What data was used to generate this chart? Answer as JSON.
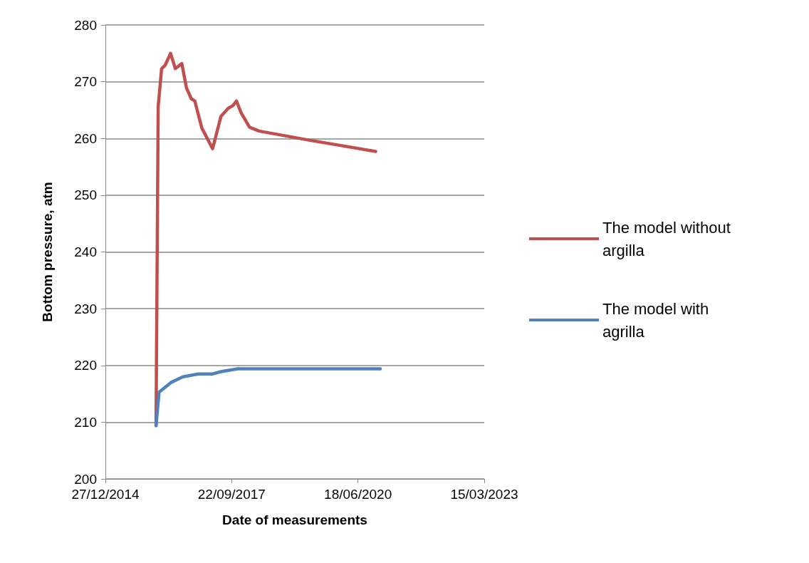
{
  "chart_data": {
    "type": "line",
    "xlabel": "Date of measurements",
    "ylabel": "Bottom pressure, atm",
    "xlim": [
      "2014-12-27",
      "2023-03-15"
    ],
    "xticks": [
      {
        "value": "2014-12-27",
        "label": "27/12/2014"
      },
      {
        "value": "2017-09-22",
        "label": "22/09/2017"
      },
      {
        "value": "2020-06-18",
        "label": "18/06/2020"
      },
      {
        "value": "2023-03-15",
        "label": "15/03/2023"
      }
    ],
    "ylim": [
      200,
      280
    ],
    "yticks": [
      200,
      210,
      220,
      230,
      240,
      250,
      260,
      270,
      280
    ],
    "grid": "y",
    "legend": "right",
    "marker": "none",
    "line_style": "solid",
    "series": [
      {
        "name": "The model without argilla",
        "color": "#c0504d",
        "x": [
          "2016-02-01",
          "2016-02-18",
          "2016-03-16",
          "2016-04-13",
          "2016-05-26",
          "2016-07-03",
          "2016-08-23",
          "2016-09-29",
          "2016-11-06",
          "2016-12-04",
          "2017-01-29",
          "2017-04-24",
          "2017-06-29",
          "2017-08-25",
          "2017-10-02",
          "2017-10-30",
          "2017-12-06",
          "2018-02-10",
          "2018-04-26",
          "2019-05-27",
          "2020-11-05"
        ],
        "values": [
          209.4,
          265.6,
          272.3,
          272.9,
          275.0,
          272.3,
          273.2,
          268.9,
          267.0,
          266.6,
          261.8,
          258.2,
          263.9,
          265.3,
          265.8,
          266.6,
          264.5,
          262.0,
          261.3,
          259.7,
          257.7
        ]
      },
      {
        "name": "The model with agrilla",
        "color": "#4f81bd",
        "x": [
          "2016-02-01",
          "2016-02-25",
          "2016-05-30",
          "2016-09-01",
          "2017-01-01",
          "2017-04-24",
          "2017-06-29",
          "2017-11-08",
          "2020-12-12"
        ],
        "values": [
          209.4,
          215.3,
          217.0,
          218.0,
          218.5,
          218.5,
          218.9,
          219.4,
          219.4
        ]
      }
    ]
  }
}
